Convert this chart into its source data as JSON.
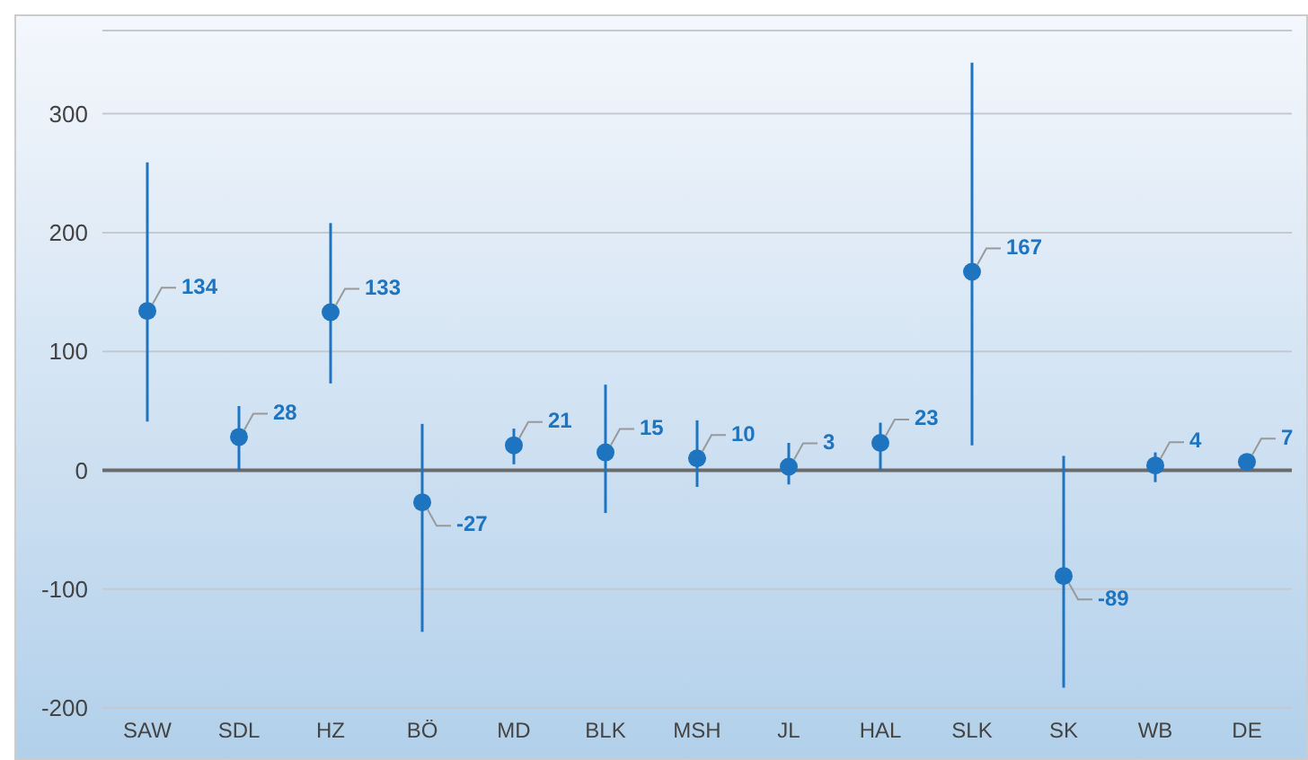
{
  "chart_data": {
    "type": "scatter",
    "categories": [
      "SAW",
      "SDL",
      "HZ",
      "BÖ",
      "MD",
      "BLK",
      "MSH",
      "JL",
      "HAL",
      "SLK",
      "SK",
      "WB",
      "DE"
    ],
    "values": [
      134,
      28,
      133,
      -27,
      21,
      15,
      10,
      3,
      23,
      167,
      -89,
      4,
      7
    ],
    "errors": [
      [
        41,
        259
      ],
      [
        0,
        54
      ],
      [
        73,
        208
      ],
      [
        -136,
        39
      ],
      [
        5,
        35
      ],
      [
        -36,
        72
      ],
      [
        -14,
        42
      ],
      [
        -12,
        23
      ],
      [
        0,
        40
      ],
      [
        21,
        343
      ],
      [
        -183,
        12
      ],
      [
        -10,
        15
      ],
      [
        2,
        13
      ]
    ],
    "color": "#1f74c0",
    "marker": "circle",
    "data_labels": true,
    "ylim": [
      -200,
      370
    ],
    "yticks": [
      -200,
      -100,
      0,
      100,
      200,
      300
    ],
    "grid": "y"
  }
}
